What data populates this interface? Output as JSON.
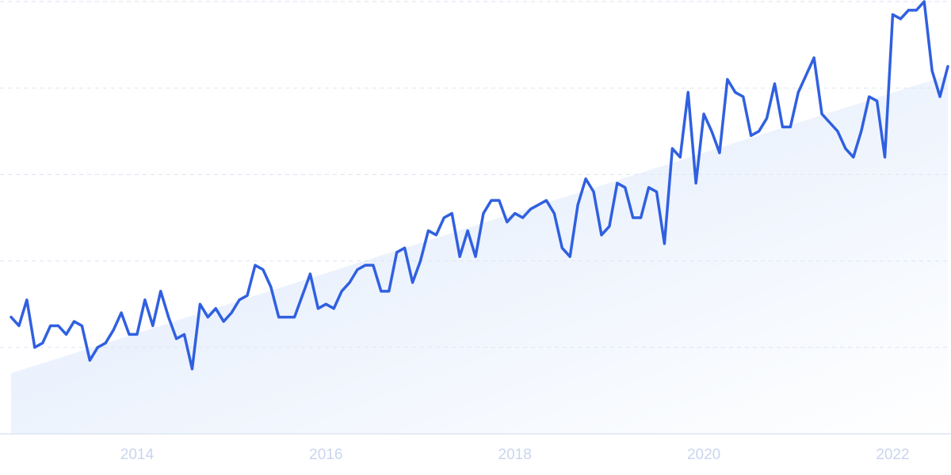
{
  "chart_data": {
    "type": "line",
    "categories": [
      null,
      null,
      null,
      null,
      null,
      null,
      null,
      null,
      null,
      null,
      null,
      null,
      null,
      null,
      null,
      null,
      "2014",
      null,
      null,
      null,
      null,
      null,
      null,
      null,
      null,
      null,
      null,
      null,
      null,
      null,
      null,
      null,
      null,
      null,
      null,
      null,
      null,
      null,
      null,
      null,
      "2016",
      null,
      null,
      null,
      null,
      null,
      null,
      null,
      null,
      null,
      null,
      null,
      null,
      null,
      null,
      null,
      null,
      null,
      null,
      null,
      null,
      null,
      null,
      null,
      "2018",
      null,
      null,
      null,
      null,
      null,
      null,
      null,
      null,
      null,
      null,
      null,
      null,
      null,
      null,
      null,
      null,
      null,
      null,
      null,
      null,
      null,
      null,
      null,
      "2020",
      null,
      null,
      null,
      null,
      null,
      null,
      null,
      null,
      null,
      null,
      null,
      null,
      null,
      null,
      null,
      null,
      null,
      null,
      null,
      null,
      null,
      null,
      null,
      "2022",
      null,
      null,
      null,
      null,
      null,
      null,
      null
    ],
    "series": [
      {
        "color": "#3060e0",
        "values": [
          27,
          25,
          31,
          20,
          21,
          25,
          25,
          23,
          26,
          25,
          17,
          20,
          21,
          24,
          28,
          23,
          23,
          31,
          25,
          33,
          27,
          22,
          23,
          15,
          30,
          27,
          29,
          26,
          28,
          31,
          32,
          39,
          38,
          34,
          27,
          27,
          27,
          32,
          37,
          29,
          30,
          29,
          33,
          35,
          38,
          39,
          39,
          33,
          33,
          42,
          43,
          35,
          40,
          47,
          46,
          50,
          51,
          41,
          47,
          41,
          51,
          54,
          54,
          49,
          51,
          50,
          52,
          53,
          54,
          51,
          43,
          41,
          53,
          59,
          56,
          46,
          48,
          58,
          57,
          50,
          50,
          57,
          56,
          44,
          66,
          64,
          79,
          58,
          74,
          70,
          65,
          82,
          79,
          78,
          69,
          70,
          73,
          81,
          71,
          71,
          79,
          83,
          87,
          74,
          72,
          70,
          66,
          64,
          70,
          78,
          77,
          64,
          97,
          96,
          98,
          98,
          100,
          84,
          78,
          85
        ]
      }
    ],
    "trend": {
      "color": "#dce8fb",
      "values": [
        14,
        83
      ]
    },
    "ylim": [
      0,
      100
    ],
    "ygrid": [
      20,
      40,
      60,
      80,
      100
    ]
  }
}
